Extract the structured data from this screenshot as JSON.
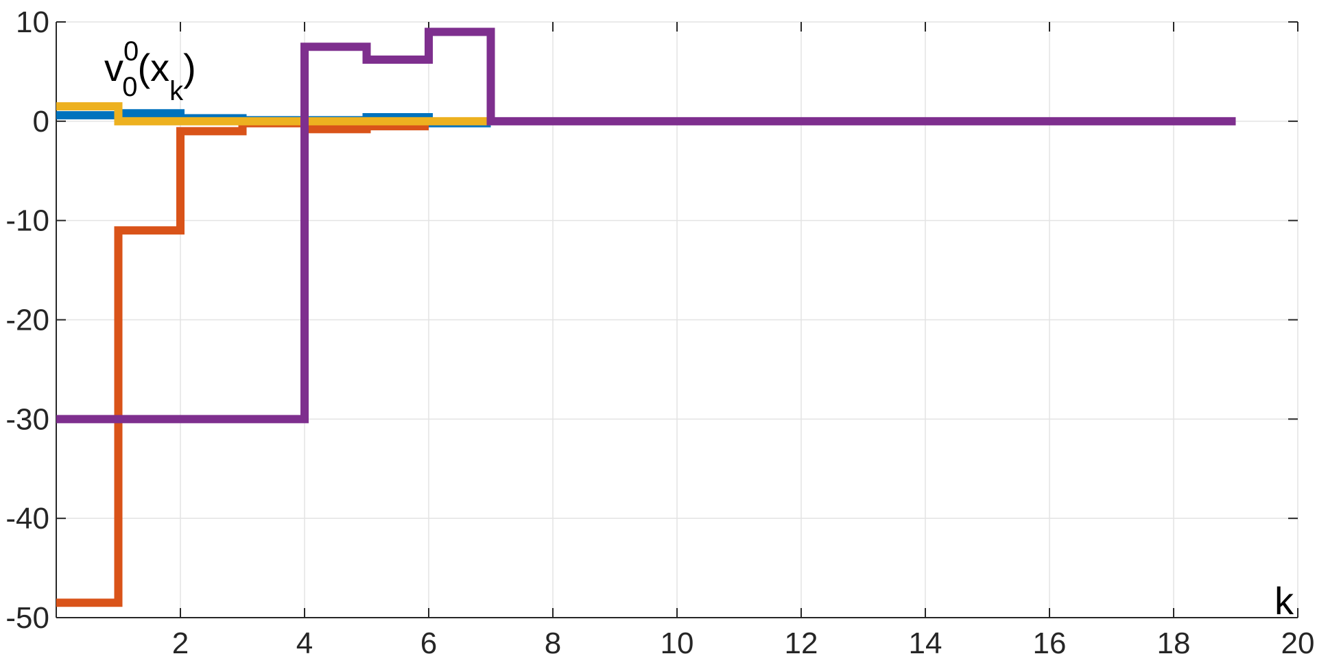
{
  "chart_data": {
    "type": "line",
    "style": "stairs",
    "xlabel": "k",
    "ylabel": "",
    "xlim": [
      0,
      20
    ],
    "ylim": [
      -50,
      10
    ],
    "xticks": [
      2,
      4,
      6,
      8,
      10,
      12,
      14,
      16,
      18,
      20
    ],
    "yticks": [
      10,
      0,
      -10,
      -20,
      -30,
      -40,
      -50
    ],
    "grid": true,
    "annotation": {
      "base": "v",
      "sup": "0",
      "sub": "0",
      "arg_open": "(x",
      "arg_sub": "k",
      "arg_close": ")"
    },
    "series": [
      {
        "color": "#0072BD",
        "x": [
          0,
          1,
          2,
          3,
          4,
          5,
          6,
          7
        ],
        "y": [
          0.6,
          0.8,
          0.3,
          0.1,
          0.1,
          0.4,
          -0.2,
          -0.2
        ]
      },
      {
        "color": "#D95319",
        "x": [
          0,
          1,
          2,
          3,
          4,
          5,
          6
        ],
        "y": [
          -48.5,
          -11,
          -1,
          -0.2,
          -0.8,
          -0.5,
          -0.5
        ]
      },
      {
        "color": "#EDB120",
        "x": [
          0,
          1,
          2,
          3,
          4,
          5,
          6,
          7
        ],
        "y": [
          1.5,
          0,
          0,
          0,
          0,
          0,
          0,
          0
        ]
      },
      {
        "color": "#7E2F8E",
        "x": [
          0,
          4,
          5,
          6,
          7,
          19
        ],
        "y": [
          -30,
          7.5,
          6.2,
          9,
          0,
          0
        ]
      }
    ]
  }
}
